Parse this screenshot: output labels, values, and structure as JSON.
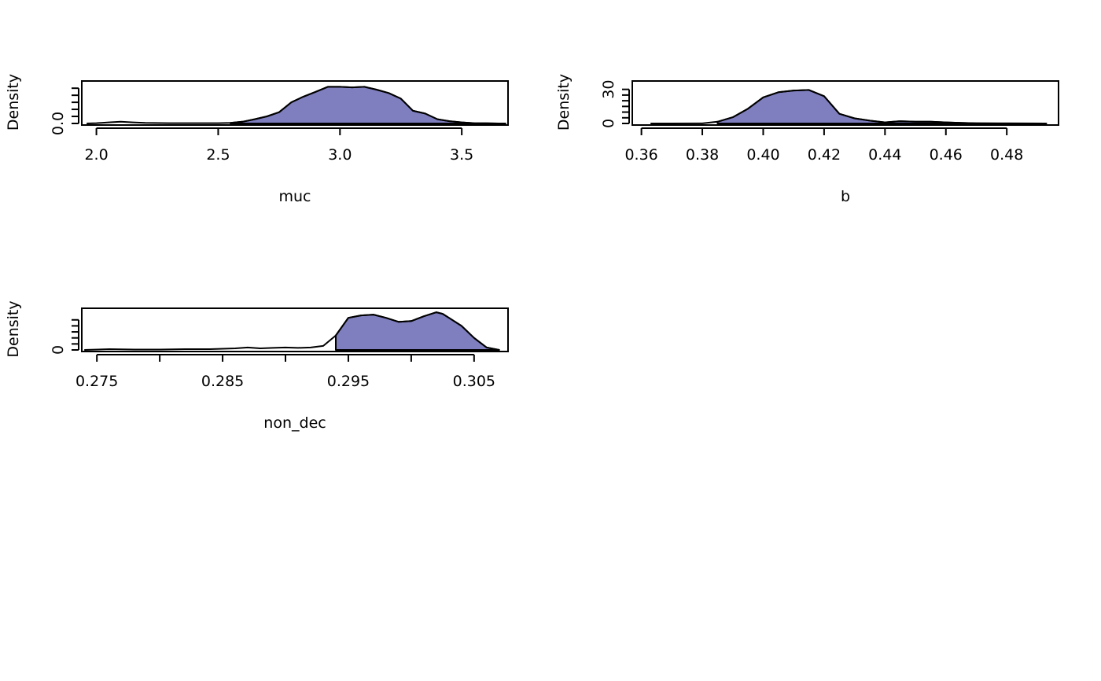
{
  "colors": {
    "fill": "#7f7fbf",
    "line": "#000000",
    "background": "#ffffff"
  },
  "chart_data": [
    {
      "type": "area",
      "title": "",
      "xlabel": "muc",
      "ylabel": "Density",
      "xlim": [
        1.94,
        3.69
      ],
      "ylim": [
        0,
        1.45
      ],
      "x_ticks": [
        2.0,
        2.5,
        3.0,
        3.5
      ],
      "x_tick_labels": [
        "2.0",
        "2.5",
        "3.0",
        "3.5"
      ],
      "y_ticks": [
        0.0,
        0.25,
        0.5,
        0.75,
        1.0,
        1.25
      ],
      "y_tick_labels": [
        "0.0",
        "",
        "",
        "",
        "",
        ""
      ],
      "fill_from": 2.55,
      "x": [
        1.96,
        2.0,
        2.05,
        2.1,
        2.15,
        2.2,
        2.3,
        2.4,
        2.5,
        2.55,
        2.6,
        2.65,
        2.7,
        2.75,
        2.8,
        2.85,
        2.9,
        2.95,
        3.0,
        3.05,
        3.1,
        3.15,
        3.2,
        3.25,
        3.3,
        3.35,
        3.4,
        3.45,
        3.5,
        3.55,
        3.6,
        3.65,
        3.68
      ],
      "values": [
        0.0,
        0.01,
        0.04,
        0.06,
        0.04,
        0.02,
        0.01,
        0.01,
        0.01,
        0.02,
        0.06,
        0.15,
        0.25,
        0.4,
        0.75,
        0.95,
        1.12,
        1.3,
        1.3,
        1.28,
        1.3,
        1.2,
        1.08,
        0.88,
        0.45,
        0.35,
        0.15,
        0.08,
        0.04,
        0.01,
        0.005,
        0.0,
        0.0
      ]
    },
    {
      "type": "area",
      "title": "",
      "xlabel": "b",
      "ylabel": "Density",
      "xlim": [
        0.357,
        0.497
      ],
      "ylim": [
        0,
        36
      ],
      "x_ticks": [
        0.36,
        0.38,
        0.4,
        0.42,
        0.44,
        0.46,
        0.48
      ],
      "x_tick_labels": [
        "0.36",
        "0.38",
        "0.40",
        "0.42",
        "0.44",
        "0.46",
        "0.48"
      ],
      "y_ticks": [
        0,
        5,
        10,
        15,
        20,
        25,
        30
      ],
      "y_tick_labels": [
        "0",
        "",
        "",
        "",
        "",
        "",
        "30"
      ],
      "fill_from": 0.384,
      "x": [
        0.363,
        0.37,
        0.38,
        0.385,
        0.39,
        0.395,
        0.4,
        0.405,
        0.41,
        0.415,
        0.42,
        0.425,
        0.43,
        0.435,
        0.44,
        0.445,
        0.45,
        0.455,
        0.46,
        0.465,
        0.47,
        0.48,
        0.493
      ],
      "values": [
        0.0,
        0.0,
        0.1,
        1.5,
        5.5,
        13.0,
        23.0,
        27.5,
        29.0,
        29.5,
        24.0,
        8.5,
        4.5,
        2.5,
        1.0,
        2.0,
        1.5,
        1.5,
        1.0,
        0.5,
        0.2,
        0.1,
        0.0
      ]
    },
    {
      "type": "area",
      "title": "",
      "xlabel": "non_dec",
      "ylabel": "Density",
      "xlim": [
        0.2738,
        0.3077
      ],
      "ylim": [
        0,
        500
      ],
      "x_ticks": [
        0.275,
        0.28,
        0.285,
        0.29,
        0.295,
        0.3,
        0.305
      ],
      "x_tick_labels": [
        "0.275",
        "",
        "0.285",
        "",
        "0.295",
        "",
        "0.305"
      ],
      "y_ticks": [
        0,
        75,
        150,
        225,
        300,
        375
      ],
      "y_tick_labels": [
        "0",
        "",
        "",
        "",
        "",
        ""
      ],
      "fill_from": 0.2935,
      "x": [
        0.274,
        0.276,
        0.278,
        0.28,
        0.282,
        0.284,
        0.286,
        0.287,
        0.288,
        0.289,
        0.29,
        0.291,
        0.292,
        0.293,
        0.294,
        0.295,
        0.296,
        0.297,
        0.298,
        0.299,
        0.3,
        0.301,
        0.302,
        0.3025,
        0.303,
        0.304,
        0.305,
        0.306,
        0.307
      ],
      "values": [
        0,
        10,
        5,
        5,
        10,
        10,
        20,
        30,
        20,
        25,
        30,
        25,
        30,
        50,
        180,
        400,
        430,
        440,
        400,
        350,
        360,
        420,
        470,
        450,
        400,
        300,
        150,
        30,
        0
      ]
    }
  ]
}
